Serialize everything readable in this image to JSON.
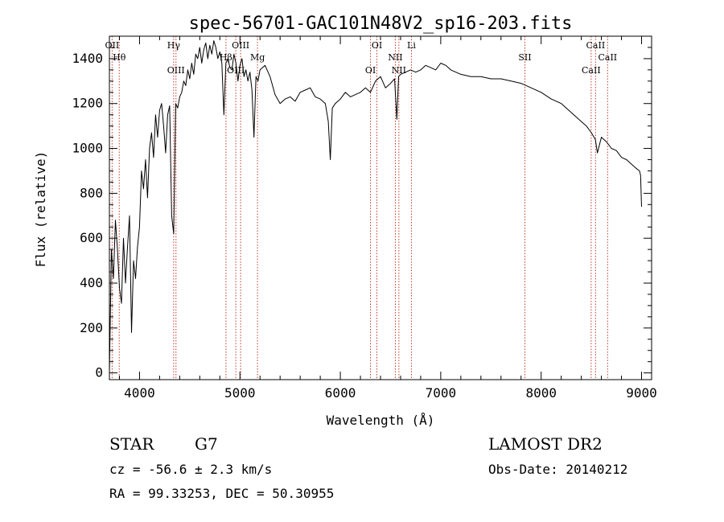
{
  "chart_data": {
    "type": "line",
    "title": "spec-56701-GAC101N48V2_sp16-203.fits",
    "xlabel": "Wavelength (Å)",
    "ylabel": "Flux (relative)",
    "xlim": [
      3700,
      9100
    ],
    "ylim": [
      -30,
      1500
    ],
    "xticks": [
      4000,
      5000,
      6000,
      7000,
      8000,
      9000
    ],
    "yticks": [
      0,
      200,
      400,
      600,
      800,
      1000,
      1200,
      1400
    ],
    "grid": false,
    "series": [
      {
        "x": [
          3700,
          3720,
          3740,
          3760,
          3780,
          3800,
          3820,
          3840,
          3860,
          3880,
          3900,
          3920,
          3940,
          3960,
          3980,
          4000,
          4020,
          4040,
          4060,
          4080,
          4100,
          4120,
          4140,
          4160,
          4180,
          4200,
          4220,
          4240,
          4260,
          4280,
          4300,
          4320,
          4340,
          4360,
          4380,
          4400,
          4420,
          4440,
          4460,
          4480,
          4500,
          4520,
          4540,
          4560,
          4580,
          4600,
          4620,
          4640,
          4660,
          4680,
          4700,
          4720,
          4740,
          4760,
          4780,
          4800,
          4820,
          4840,
          4860,
          4880,
          4900,
          4920,
          4940,
          4960,
          4980,
          5000,
          5020,
          5040,
          5060,
          5080,
          5100,
          5120,
          5140,
          5160,
          5180,
          5200,
          5250,
          5300,
          5350,
          5400,
          5450,
          5500,
          5550,
          5600,
          5650,
          5700,
          5750,
          5800,
          5850,
          5880,
          5900,
          5920,
          5950,
          6000,
          6050,
          6100,
          6150,
          6200,
          6250,
          6300,
          6350,
          6400,
          6450,
          6500,
          6540,
          6563,
          6580,
          6600,
          6650,
          6700,
          6750,
          6800,
          6850,
          6900,
          6950,
          7000,
          7050,
          7100,
          7150,
          7200,
          7300,
          7400,
          7500,
          7600,
          7700,
          7800,
          7900,
          8000,
          8100,
          8200,
          8300,
          8400,
          8450,
          8500,
          8540,
          8560,
          8600,
          8650,
          8700,
          8750,
          8800,
          8850,
          8900,
          8950,
          8980,
          8990,
          9000
        ],
        "y": [
          0,
          550,
          420,
          680,
          550,
          380,
          310,
          600,
          400,
          560,
          700,
          180,
          500,
          420,
          560,
          650,
          900,
          820,
          950,
          780,
          1000,
          1070,
          960,
          1150,
          1050,
          1170,
          1200,
          1100,
          980,
          1150,
          1190,
          700,
          620,
          1200,
          1180,
          1230,
          1250,
          1300,
          1280,
          1350,
          1310,
          1380,
          1330,
          1420,
          1400,
          1450,
          1380,
          1440,
          1470,
          1400,
          1460,
          1420,
          1480,
          1450,
          1400,
          1430,
          1380,
          1150,
          1380,
          1400,
          1360,
          1350,
          1420,
          1380,
          1300,
          1370,
          1400,
          1320,
          1350,
          1300,
          1340,
          1260,
          1050,
          1320,
          1300,
          1350,
          1370,
          1320,
          1240,
          1200,
          1220,
          1230,
          1210,
          1250,
          1260,
          1270,
          1230,
          1220,
          1200,
          1120,
          950,
          1180,
          1200,
          1220,
          1250,
          1230,
          1240,
          1250,
          1270,
          1250,
          1300,
          1320,
          1270,
          1290,
          1310,
          1130,
          1320,
          1330,
          1340,
          1350,
          1340,
          1350,
          1370,
          1360,
          1350,
          1380,
          1370,
          1350,
          1340,
          1330,
          1320,
          1320,
          1310,
          1310,
          1300,
          1290,
          1270,
          1250,
          1220,
          1200,
          1160,
          1120,
          1100,
          1070,
          1040,
          980,
          1050,
          1030,
          1000,
          990,
          960,
          950,
          930,
          910,
          900,
          880,
          740
        ]
      }
    ],
    "line_markers": [
      {
        "label": "OII",
        "x": 3727
      },
      {
        "label": "Hθ",
        "x": 3798
      },
      {
        "label": "OIII",
        "x": 4363
      },
      {
        "label": "Hγ",
        "x": 4340
      },
      {
        "label": "Hβ",
        "x": 4861
      },
      {
        "label": "OIII",
        "x": 4959
      },
      {
        "label": "OIII",
        "x": 5007
      },
      {
        "label": "Mg",
        "x": 5175
      },
      {
        "label": "OI",
        "x": 6300
      },
      {
        "label": "OI",
        "x": 6364
      },
      {
        "label": "NII",
        "x": 6548
      },
      {
        "label": "NII",
        "x": 6583
      },
      {
        "label": "Li",
        "x": 6708
      },
      {
        "label": "SII",
        "x": 7838
      },
      {
        "label": "CaII",
        "x": 8498
      },
      {
        "label": "CaII",
        "x": 8542
      },
      {
        "label": "CaII",
        "x": 8662
      }
    ]
  },
  "info": {
    "object_class": "STAR",
    "subclass": "G7",
    "survey": "LAMOST DR2",
    "redshift": "cz = -56.6 ± 2.3 km/s",
    "obs_date": "Obs-Date: 20140212",
    "coords": "RA =  99.33253, DEC =  50.30955"
  },
  "colors": {
    "spectrum": "#000000",
    "marker_lines": "#c0392b",
    "background": "#ffffff"
  }
}
